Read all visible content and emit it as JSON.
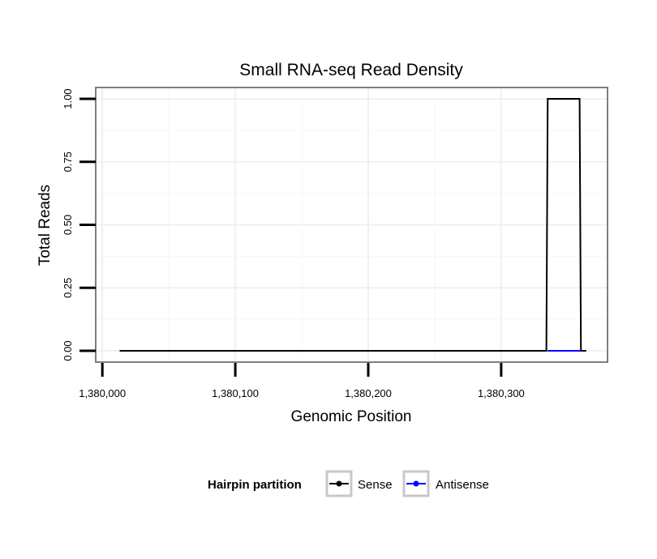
{
  "chart_data": {
    "type": "line",
    "title": "Small RNA-seq Read Density",
    "xlabel": "Genomic Position",
    "ylabel": "Total Reads",
    "xlim": [
      1379995,
      1380380
    ],
    "ylim": [
      -0.045,
      1.045
    ],
    "x_ticks": [
      1380000,
      1380100,
      1380200,
      1380300
    ],
    "x_tick_labels": [
      "1,380,000",
      "1,380,100",
      "1,380,200",
      "1,380,300"
    ],
    "y_ticks": [
      0,
      0.25,
      0.5,
      0.75,
      1.0
    ],
    "y_tick_labels": [
      "0.00",
      "0.25",
      "0.50",
      "0.75",
      "1.00"
    ],
    "grid": true,
    "series": [
      {
        "name": "Sense",
        "color": "#000000",
        "x": [
          1380013,
          1380334,
          1380335,
          1380359,
          1380360,
          1380364
        ],
        "y": [
          0,
          0,
          1,
          1,
          0,
          0
        ]
      },
      {
        "name": "Antisense",
        "color": "#0000ff",
        "x": [
          1380335,
          1380360
        ],
        "y": [
          0,
          0
        ]
      }
    ],
    "legend": {
      "title": "Hairpin partition",
      "position": "bottom",
      "entries": [
        "Sense",
        "Antisense"
      ]
    }
  }
}
